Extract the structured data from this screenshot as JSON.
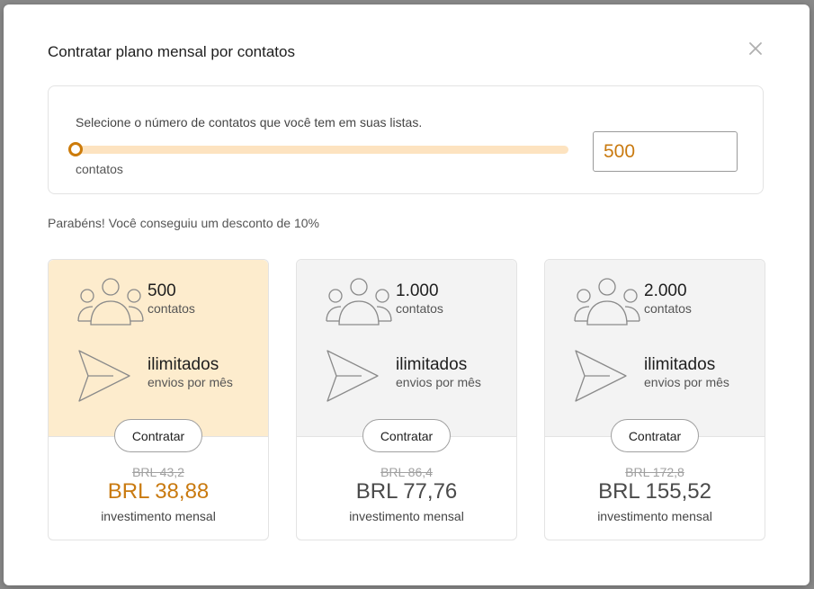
{
  "modal": {
    "title": "Contratar plano mensal por contatos",
    "close_icon": "close-icon"
  },
  "selector": {
    "label": "Selecione o número de contatos que você tem em suas listas.",
    "unit": "contatos",
    "value": "500",
    "slider_level": 0
  },
  "discount_message": "Parabéns! Você conseguiu um desconto de 10%",
  "colors": {
    "accent": "#c97a10",
    "selected_card_bg": "#fdeccd",
    "card_bg": "#f3f3f3",
    "slider_track": "#fde3c0"
  },
  "plans": [
    {
      "contacts": "500",
      "contacts_label": "contatos",
      "sends": "ilimitados",
      "sends_label": "envios por mês",
      "button": "Contratar",
      "old_price": "BRL 43,2",
      "price": "BRL 38,88",
      "period": "investimento mensal",
      "selected": true
    },
    {
      "contacts": "1.000",
      "contacts_label": "contatos",
      "sends": "ilimitados",
      "sends_label": "envios por mês",
      "button": "Contratar",
      "old_price": "BRL 86,4",
      "price": "BRL 77,76",
      "period": "investimento mensal",
      "selected": false
    },
    {
      "contacts": "2.000",
      "contacts_label": "contatos",
      "sends": "ilimitados",
      "sends_label": "envios por mês",
      "button": "Contratar",
      "old_price": "BRL 172,8",
      "price": "BRL 155,52",
      "period": "investimento mensal",
      "selected": false
    }
  ]
}
